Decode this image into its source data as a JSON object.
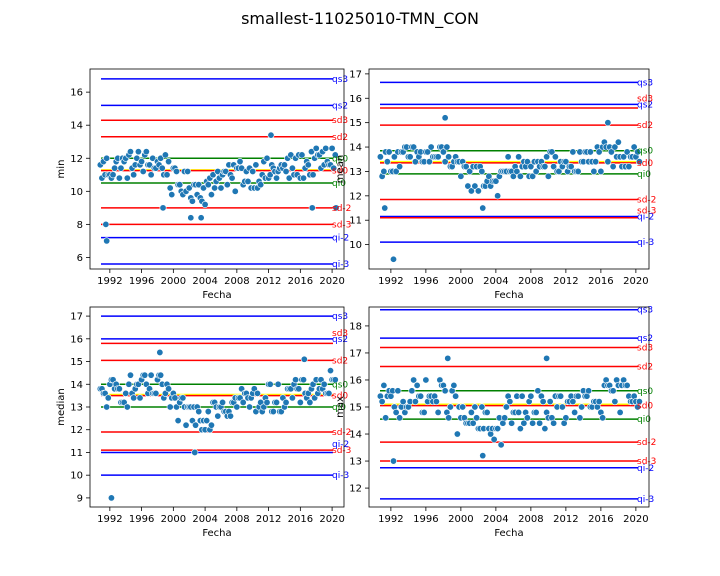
{
  "title": "smallest-11025010-TMN_CON",
  "colors": {
    "points": "#1f77b4",
    "qs": "#0000ff",
    "sd": "#ff0000",
    "q0": "#008000",
    "mean": "#ffff00"
  },
  "chart_data": [
    {
      "type": "scatter",
      "xlabel": "Fecha",
      "ylabel": "min",
      "xlim": [
        1989.5,
        2021.5
      ],
      "ylim": [
        5.3,
        17.4
      ],
      "xticks": [
        1992,
        1996,
        2000,
        2004,
        2008,
        2012,
        2016,
        2020
      ],
      "xtick_labels": [
        "1992",
        "1996",
        "2000",
        "2004",
        "2008",
        "2012",
        "2016",
        "2020"
      ],
      "yticks": [
        6,
        8,
        10,
        12,
        14,
        16
      ],
      "ytick_labels": [
        "6",
        "8",
        "10",
        "12",
        "14",
        "16"
      ],
      "hlines": [
        {
          "label": "qs3",
          "y": 16.8,
          "color": "#0000ff"
        },
        {
          "label": "qs2",
          "y": 15.2,
          "color": "#0000ff"
        },
        {
          "label": "sd3",
          "y": 14.3,
          "color": "#ff0000"
        },
        {
          "label": "sd2",
          "y": 13.3,
          "color": "#ff0000"
        },
        {
          "label": "qs0",
          "y": 12.0,
          "color": "#008000"
        },
        {
          "label": "",
          "y": 11.3,
          "color": "#ffff00"
        },
        {
          "label": "sd0",
          "y": 11.25,
          "color": "#ff0000"
        },
        {
          "label": "qi0",
          "y": 10.5,
          "color": "#008000"
        },
        {
          "label": "sd-2",
          "y": 9.0,
          "color": "#ff0000"
        },
        {
          "label": "sd-3",
          "y": 8.0,
          "color": "#ff0000"
        },
        {
          "label": "qi-2",
          "y": 7.2,
          "color": "#0000ff"
        },
        {
          "label": "qi-3",
          "y": 5.6,
          "color": "#0000ff"
        }
      ],
      "series": {
        "center": 11.2,
        "spread": 1.1,
        "outliers": [
          [
            1991.5,
            8.0
          ],
          [
            1991.6,
            7.0
          ],
          [
            2003.5,
            8.4
          ],
          [
            2002.2,
            8.4
          ],
          [
            2012.3,
            13.4
          ],
          [
            1998.7,
            9.0
          ],
          [
            2017.5,
            9.0
          ],
          [
            2020.5,
            9.0
          ]
        ]
      }
    },
    {
      "type": "scatter",
      "xlabel": "Fecha",
      "ylabel": "mean",
      "xlim": [
        1989.5,
        2021.5
      ],
      "ylim": [
        9.0,
        17.2
      ],
      "xticks": [
        1992,
        1996,
        2000,
        2004,
        2008,
        2012,
        2016,
        2020
      ],
      "xtick_labels": [
        "1992",
        "1996",
        "2000",
        "2004",
        "2008",
        "2012",
        "2016",
        "2020"
      ],
      "yticks": [
        10,
        11,
        12,
        13,
        14,
        15,
        16,
        17
      ],
      "ytick_labels": [
        "10",
        "11",
        "12",
        "13",
        "14",
        "15",
        "16",
        "17"
      ],
      "hlines": [
        {
          "label": "qs3",
          "y": 16.65,
          "color": "#0000ff"
        },
        {
          "label": "qs2",
          "y": 15.75,
          "color": "#0000ff"
        },
        {
          "label": "sd3",
          "y": 15.6,
          "color": "#ff0000"
        },
        {
          "label": "sd2",
          "y": 14.9,
          "color": "#ff0000"
        },
        {
          "label": "qs0",
          "y": 13.85,
          "color": "#008000"
        },
        {
          "label": "",
          "y": 13.4,
          "color": "#ffff00"
        },
        {
          "label": "sd0",
          "y": 13.35,
          "color": "#ff0000"
        },
        {
          "label": "qi0",
          "y": 12.9,
          "color": "#008000"
        },
        {
          "label": "sd-2",
          "y": 11.85,
          "color": "#ff0000"
        },
        {
          "label": "qi-2",
          "y": 11.15,
          "color": "#0000ff"
        },
        {
          "label": "sd-3",
          "y": 11.1,
          "color": "#ff0000"
        },
        {
          "label": "qi-3",
          "y": 10.1,
          "color": "#0000ff"
        }
      ],
      "series": {
        "center": 13.3,
        "spread": 0.7,
        "outliers": [
          [
            1992.3,
            9.4
          ],
          [
            1998.2,
            15.2
          ],
          [
            1991.3,
            11.5
          ],
          [
            2002.5,
            11.5
          ],
          [
            2016.8,
            15.0
          ]
        ]
      }
    },
    {
      "type": "scatter",
      "xlabel": "Fecha",
      "ylabel": "median",
      "xlim": [
        1989.5,
        2021.5
      ],
      "ylim": [
        8.6,
        17.4
      ],
      "xticks": [
        1992,
        1996,
        2000,
        2004,
        2008,
        2012,
        2016,
        2020
      ],
      "xtick_labels": [
        "1992",
        "1996",
        "2000",
        "2004",
        "2008",
        "2012",
        "2016",
        "2020"
      ],
      "yticks": [
        9,
        10,
        11,
        12,
        13,
        14,
        15,
        16,
        17
      ],
      "ytick_labels": [
        "9",
        "10",
        "11",
        "12",
        "13",
        "14",
        "15",
        "16",
        "17"
      ],
      "hlines": [
        {
          "label": "qs3",
          "y": 17.0,
          "color": "#0000ff"
        },
        {
          "label": "qs2",
          "y": 16.0,
          "color": "#0000ff"
        },
        {
          "label": "sd3",
          "y": 15.8,
          "color": "#ff0000"
        },
        {
          "label": "sd2",
          "y": 15.05,
          "color": "#ff0000"
        },
        {
          "label": "qs0",
          "y": 14.0,
          "color": "#008000"
        },
        {
          "label": "",
          "y": 13.55,
          "color": "#ffff00"
        },
        {
          "label": "sd0",
          "y": 13.5,
          "color": "#ff0000"
        },
        {
          "label": "qi0",
          "y": 13.0,
          "color": "#008000"
        },
        {
          "label": "sd-2",
          "y": 11.9,
          "color": "#ff0000"
        },
        {
          "label": "sd-3",
          "y": 11.1,
          "color": "#ff0000"
        },
        {
          "label": "qi-2",
          "y": 11.0,
          "color": "#0000ff"
        },
        {
          "label": "qi-3",
          "y": 10.0,
          "color": "#0000ff"
        }
      ],
      "series": {
        "center": 13.4,
        "spread": 0.8,
        "outliers": [
          [
            1992.2,
            9.0
          ],
          [
            2002.7,
            11.0
          ],
          [
            1998.3,
            15.4
          ],
          [
            2016.5,
            15.1
          ]
        ]
      }
    },
    {
      "type": "scatter",
      "xlabel": "Fecha",
      "ylabel": "max",
      "xlim": [
        1989.5,
        2021.5
      ],
      "ylim": [
        11.3,
        18.7
      ],
      "xticks": [
        1992,
        1996,
        2000,
        2004,
        2008,
        2012,
        2016,
        2020
      ],
      "xtick_labels": [
        "1992",
        "1996",
        "2000",
        "2004",
        "2008",
        "2012",
        "2016",
        "2020"
      ],
      "yticks": [
        12,
        13,
        14,
        15,
        16,
        17,
        18
      ],
      "ytick_labels": [
        "12",
        "13",
        "14",
        "15",
        "16",
        "17",
        "18"
      ],
      "hlines": [
        {
          "label": "qs3",
          "y": 18.6,
          "color": "#0000ff"
        },
        {
          "label": "qs2",
          "y": 17.55,
          "color": "#0000ff"
        },
        {
          "label": "sd3",
          "y": 17.2,
          "color": "#ff0000"
        },
        {
          "label": "sd2",
          "y": 16.5,
          "color": "#ff0000"
        },
        {
          "label": "qs0",
          "y": 15.6,
          "color": "#008000"
        },
        {
          "label": "",
          "y": 15.1,
          "color": "#ffff00"
        },
        {
          "label": "sd0",
          "y": 15.05,
          "color": "#ff0000"
        },
        {
          "label": "qi0",
          "y": 14.55,
          "color": "#008000"
        },
        {
          "label": "sd-2",
          "y": 13.7,
          "color": "#ff0000"
        },
        {
          "label": "sd-3",
          "y": 13.0,
          "color": "#ff0000"
        },
        {
          "label": "qi-2",
          "y": 12.75,
          "color": "#0000ff"
        },
        {
          "label": "qi-3",
          "y": 11.6,
          "color": "#0000ff"
        }
      ],
      "series": {
        "center": 15.0,
        "spread": 0.8,
        "outliers": [
          [
            1992.3,
            13.0
          ],
          [
            1998.5,
            16.8
          ],
          [
            2009.8,
            16.8
          ],
          [
            2002.5,
            13.2
          ]
        ]
      }
    }
  ]
}
